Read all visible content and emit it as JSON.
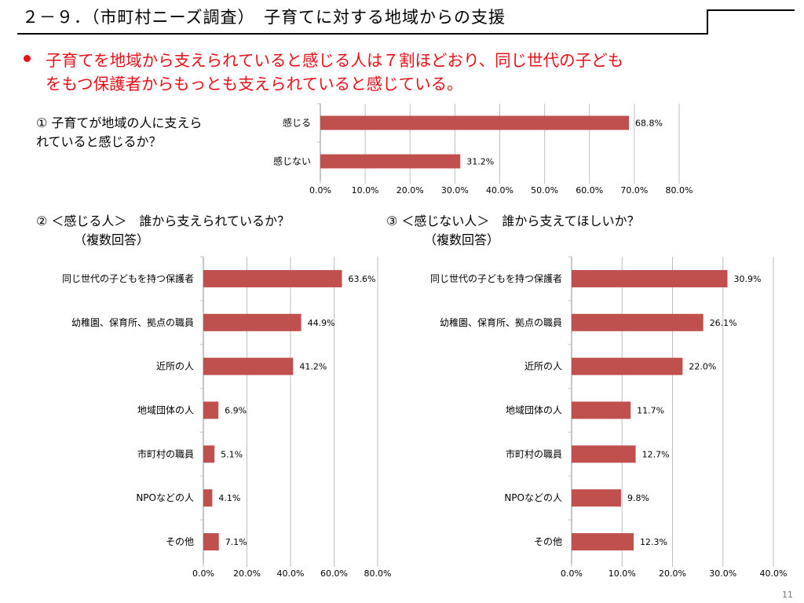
{
  "slide": {
    "title": "２－９．（市町村ニーズ調査）　子育てに対する地域からの支援",
    "summary": [
      "子育てを地域から支えられていると感じる人は７割ほどおり、同じ世代の子ども",
      "をもつ保護者からもっとも支えられていると感じている。"
    ],
    "page_number": "11"
  },
  "questions": {
    "q1": [
      "① 子育てが地域の人に支えら",
      "れていると感じるか？"
    ],
    "q2": [
      "② ＜感じる人＞　誰から支えられているか？",
      "（複数回答）"
    ],
    "q3": [
      "③ ＜感じない人＞　誰から支えてほしいか？",
      "（複数回答）"
    ]
  },
  "colors": {
    "bar": "#c0504d",
    "grid": "#bfbfbf",
    "accent": "#e8111a"
  },
  "chart_data": [
    {
      "type": "bar",
      "orientation": "horizontal",
      "categories": [
        "感じる",
        "感じない"
      ],
      "values": [
        68.8,
        31.2
      ],
      "value_labels": [
        "68.8%",
        "31.2%"
      ],
      "xlim": [
        0,
        80
      ],
      "ticks": [
        "0.0%",
        "10.0%",
        "20.0%",
        "30.0%",
        "40.0%",
        "50.0%",
        "60.0%",
        "70.0%",
        "80.0%"
      ],
      "grid": true
    },
    {
      "type": "bar",
      "orientation": "horizontal",
      "categories": [
        "同じ世代の子どもを持つ保護者",
        "幼稚園、保育所、拠点の職員",
        "近所の人",
        "地域団体の人",
        "市町村の職員",
        "NPOなどの人",
        "その他"
      ],
      "values": [
        63.6,
        44.9,
        41.2,
        6.9,
        5.1,
        4.1,
        7.1
      ],
      "value_labels": [
        "63.6%",
        "44.9%",
        "41.2%",
        "6.9%",
        "5.1%",
        "4.1%",
        "7.1%"
      ],
      "xlim": [
        0,
        80
      ],
      "ticks": [
        "0.0%",
        "20.0%",
        "40.0%",
        "60.0%",
        "80.0%"
      ],
      "grid": true
    },
    {
      "type": "bar",
      "orientation": "horizontal",
      "categories": [
        "同じ世代の子どもを持つ保護者",
        "幼稚園、保育所、拠点の職員",
        "近所の人",
        "地域団体の人",
        "市町村の職員",
        "NPOなどの人",
        "その他"
      ],
      "values": [
        30.9,
        26.1,
        22.0,
        11.7,
        12.7,
        9.8,
        12.3
      ],
      "value_labels": [
        "30.9%",
        "26.1%",
        "22.0%",
        "11.7%",
        "12.7%",
        "9.8%",
        "12.3%"
      ],
      "xlim": [
        0,
        40
      ],
      "ticks": [
        "0.0%",
        "10.0%",
        "20.0%",
        "30.0%",
        "40.0%"
      ],
      "grid": true
    }
  ]
}
